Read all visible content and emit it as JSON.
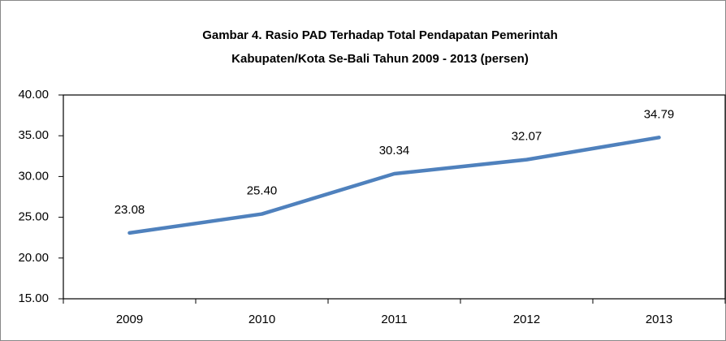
{
  "chart_data": {
    "type": "line",
    "title": [
      "Gambar 4. Rasio PAD Terhadap Total Pendapatan Pemerintah",
      "Kabupaten/Kota Se-Bali Tahun 2009 - 2013 (persen)"
    ],
    "categories": [
      "2009",
      "2010",
      "2011",
      "2012",
      "2013"
    ],
    "values": [
      23.08,
      25.4,
      30.34,
      32.07,
      34.79
    ],
    "value_labels": [
      "23.08",
      "25.40",
      "30.34",
      "32.07",
      "34.79"
    ],
    "color": "#4f81bd",
    "ylim": [
      15,
      40
    ],
    "yticks": [
      {
        "value": 15,
        "label": "15.00"
      },
      {
        "value": 20,
        "label": "20.00"
      },
      {
        "value": 25,
        "label": "25.00"
      },
      {
        "value": 30,
        "label": "30.00"
      },
      {
        "value": 35,
        "label": "35.00"
      },
      {
        "value": 40,
        "label": "40.00"
      }
    ],
    "grid": false
  }
}
